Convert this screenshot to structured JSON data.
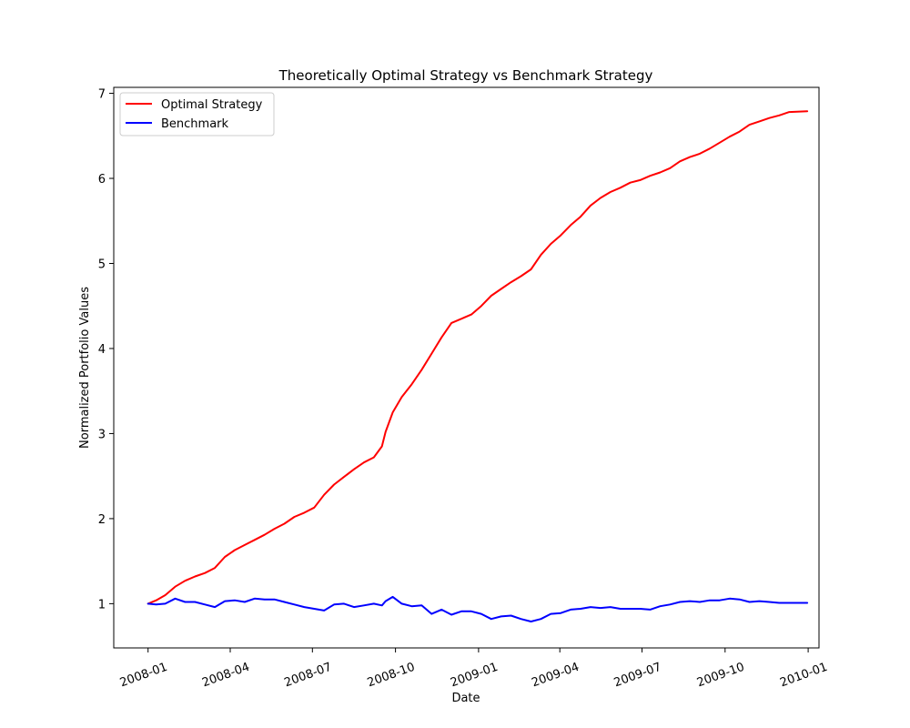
{
  "chart_data": {
    "type": "line",
    "title": "Theoretically Optimal Strategy vs Benchmark Strategy",
    "xlabel": "Date",
    "ylabel": "Normalized Portfolio Values",
    "xlim": [
      "2007-11-24",
      "2010-01-13"
    ],
    "ylim": [
      0.48,
      7.07
    ],
    "x_ticks": [
      {
        "date": "2008-01-01",
        "label": "2008-01"
      },
      {
        "date": "2008-04-01",
        "label": "2008-04"
      },
      {
        "date": "2008-07-01",
        "label": "2008-07"
      },
      {
        "date": "2008-10-01",
        "label": "2008-10"
      },
      {
        "date": "2009-01-01",
        "label": "2009-01"
      },
      {
        "date": "2009-04-01",
        "label": "2009-04"
      },
      {
        "date": "2009-07-01",
        "label": "2009-07"
      },
      {
        "date": "2009-10-01",
        "label": "2009-10"
      },
      {
        "date": "2010-01-01",
        "label": "2010-01"
      }
    ],
    "y_ticks": [
      {
        "value": 1,
        "label": "1"
      },
      {
        "value": 2,
        "label": "2"
      },
      {
        "value": 3,
        "label": "3"
      },
      {
        "value": 4,
        "label": "4"
      },
      {
        "value": 5,
        "label": "5"
      },
      {
        "value": 6,
        "label": "6"
      },
      {
        "value": 7,
        "label": "7"
      }
    ],
    "grid": false,
    "legend_position": "upper-left",
    "series": [
      {
        "name": "Optimal Strategy",
        "color": "#ff0000",
        "points": [
          [
            "2008-01-01",
            1.0
          ],
          [
            "2008-01-10",
            1.04
          ],
          [
            "2008-01-20",
            1.1
          ],
          [
            "2008-01-31",
            1.2
          ],
          [
            "2008-02-11",
            1.27
          ],
          [
            "2008-02-22",
            1.32
          ],
          [
            "2008-03-04",
            1.36
          ],
          [
            "2008-03-15",
            1.42
          ],
          [
            "2008-03-26",
            1.55
          ],
          [
            "2008-04-06",
            1.63
          ],
          [
            "2008-04-17",
            1.69
          ],
          [
            "2008-04-28",
            1.75
          ],
          [
            "2008-05-09",
            1.81
          ],
          [
            "2008-05-20",
            1.88
          ],
          [
            "2008-05-31",
            1.94
          ],
          [
            "2008-06-11",
            2.02
          ],
          [
            "2008-06-22",
            2.07
          ],
          [
            "2008-07-03",
            2.13
          ],
          [
            "2008-07-14",
            2.28
          ],
          [
            "2008-07-25",
            2.4
          ],
          [
            "2008-08-05",
            2.49
          ],
          [
            "2008-08-16",
            2.58
          ],
          [
            "2008-08-27",
            2.66
          ],
          [
            "2008-09-07",
            2.72
          ],
          [
            "2008-09-16",
            2.85
          ],
          [
            "2008-09-20",
            3.02
          ],
          [
            "2008-09-28",
            3.25
          ],
          [
            "2008-10-08",
            3.43
          ],
          [
            "2008-10-19",
            3.58
          ],
          [
            "2008-10-30",
            3.75
          ],
          [
            "2008-11-10",
            3.94
          ],
          [
            "2008-11-21",
            4.13
          ],
          [
            "2008-12-02",
            4.3
          ],
          [
            "2008-12-13",
            4.35
          ],
          [
            "2008-12-24",
            4.4
          ],
          [
            "2009-01-04",
            4.5
          ],
          [
            "2009-01-15",
            4.62
          ],
          [
            "2009-01-26",
            4.7
          ],
          [
            "2009-02-06",
            4.78
          ],
          [
            "2009-02-17",
            4.85
          ],
          [
            "2009-02-28",
            4.93
          ],
          [
            "2009-03-11",
            5.1
          ],
          [
            "2009-03-22",
            5.23
          ],
          [
            "2009-04-02",
            5.33
          ],
          [
            "2009-04-13",
            5.45
          ],
          [
            "2009-04-24",
            5.55
          ],
          [
            "2009-05-05",
            5.68
          ],
          [
            "2009-05-16",
            5.77
          ],
          [
            "2009-05-27",
            5.84
          ],
          [
            "2009-06-07",
            5.89
          ],
          [
            "2009-06-18",
            5.95
          ],
          [
            "2009-06-29",
            5.98
          ],
          [
            "2009-07-10",
            6.03
          ],
          [
            "2009-07-21",
            6.07
          ],
          [
            "2009-08-01",
            6.12
          ],
          [
            "2009-08-12",
            6.2
          ],
          [
            "2009-08-23",
            6.25
          ],
          [
            "2009-09-03",
            6.29
          ],
          [
            "2009-09-14",
            6.35
          ],
          [
            "2009-09-25",
            6.42
          ],
          [
            "2009-10-06",
            6.49
          ],
          [
            "2009-10-17",
            6.55
          ],
          [
            "2009-10-28",
            6.63
          ],
          [
            "2009-11-08",
            6.67
          ],
          [
            "2009-11-19",
            6.71
          ],
          [
            "2009-11-30",
            6.74
          ],
          [
            "2009-12-11",
            6.78
          ],
          [
            "2009-12-31",
            6.79
          ]
        ]
      },
      {
        "name": "Benchmark",
        "color": "#0000ff",
        "points": [
          [
            "2008-01-01",
            1.0
          ],
          [
            "2008-01-10",
            0.99
          ],
          [
            "2008-01-20",
            1.0
          ],
          [
            "2008-01-31",
            1.06
          ],
          [
            "2008-02-11",
            1.02
          ],
          [
            "2008-02-22",
            1.02
          ],
          [
            "2008-03-04",
            0.99
          ],
          [
            "2008-03-15",
            0.96
          ],
          [
            "2008-03-26",
            1.03
          ],
          [
            "2008-04-06",
            1.04
          ],
          [
            "2008-04-17",
            1.02
          ],
          [
            "2008-04-28",
            1.06
          ],
          [
            "2008-05-09",
            1.05
          ],
          [
            "2008-05-20",
            1.05
          ],
          [
            "2008-05-31",
            1.02
          ],
          [
            "2008-06-11",
            0.99
          ],
          [
            "2008-06-22",
            0.96
          ],
          [
            "2008-07-03",
            0.94
          ],
          [
            "2008-07-14",
            0.92
          ],
          [
            "2008-07-25",
            0.99
          ],
          [
            "2008-08-05",
            1.0
          ],
          [
            "2008-08-16",
            0.96
          ],
          [
            "2008-08-27",
            0.98
          ],
          [
            "2008-09-07",
            1.0
          ],
          [
            "2008-09-16",
            0.98
          ],
          [
            "2008-09-20",
            1.03
          ],
          [
            "2008-09-28",
            1.08
          ],
          [
            "2008-10-08",
            1.0
          ],
          [
            "2008-10-19",
            0.97
          ],
          [
            "2008-10-30",
            0.98
          ],
          [
            "2008-11-10",
            0.88
          ],
          [
            "2008-11-21",
            0.93
          ],
          [
            "2008-12-02",
            0.87
          ],
          [
            "2008-12-13",
            0.91
          ],
          [
            "2008-12-24",
            0.91
          ],
          [
            "2009-01-04",
            0.88
          ],
          [
            "2009-01-15",
            0.82
          ],
          [
            "2009-01-26",
            0.85
          ],
          [
            "2009-02-06",
            0.86
          ],
          [
            "2009-02-17",
            0.82
          ],
          [
            "2009-02-28",
            0.79
          ],
          [
            "2009-03-11",
            0.82
          ],
          [
            "2009-03-22",
            0.88
          ],
          [
            "2009-04-02",
            0.89
          ],
          [
            "2009-04-13",
            0.93
          ],
          [
            "2009-04-24",
            0.94
          ],
          [
            "2009-05-05",
            0.96
          ],
          [
            "2009-05-16",
            0.95
          ],
          [
            "2009-05-27",
            0.96
          ],
          [
            "2009-06-07",
            0.94
          ],
          [
            "2009-06-18",
            0.94
          ],
          [
            "2009-06-29",
            0.94
          ],
          [
            "2009-07-10",
            0.93
          ],
          [
            "2009-07-21",
            0.97
          ],
          [
            "2009-08-01",
            0.99
          ],
          [
            "2009-08-12",
            1.02
          ],
          [
            "2009-08-23",
            1.03
          ],
          [
            "2009-09-03",
            1.02
          ],
          [
            "2009-09-14",
            1.04
          ],
          [
            "2009-09-25",
            1.04
          ],
          [
            "2009-10-06",
            1.06
          ],
          [
            "2009-10-17",
            1.05
          ],
          [
            "2009-10-28",
            1.02
          ],
          [
            "2009-11-08",
            1.03
          ],
          [
            "2009-11-19",
            1.02
          ],
          [
            "2009-11-30",
            1.01
          ],
          [
            "2009-12-11",
            1.01
          ],
          [
            "2009-12-31",
            1.01
          ]
        ]
      }
    ]
  }
}
